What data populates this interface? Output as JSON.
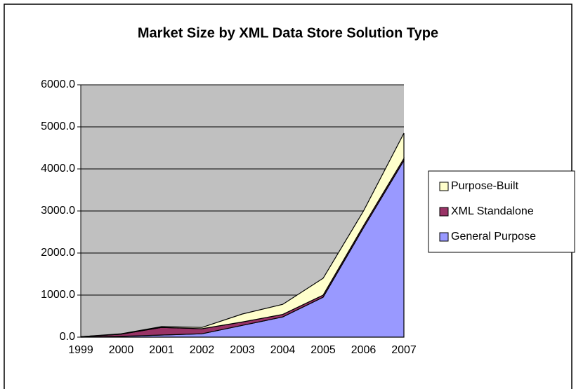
{
  "chart_data": {
    "type": "stacked_area",
    "title": "Market Size by XML Data Store Solution Type",
    "categories": [
      "1999",
      "2000",
      "2001",
      "2002",
      "2003",
      "2004",
      "2005",
      "2006",
      "2007"
    ],
    "series": [
      {
        "name": "General Purpose",
        "color": "#9999ff",
        "values": [
          0,
          20,
          50,
          80,
          280,
          480,
          950,
          2600,
          4200
        ]
      },
      {
        "name": "XML Standalone",
        "color": "#993366",
        "values": [
          10,
          50,
          180,
          120,
          80,
          60,
          50,
          50,
          50
        ]
      },
      {
        "name": "Purpose-Built",
        "color": "#ffffcc",
        "values": [
          0,
          10,
          20,
          30,
          190,
          240,
          400,
          350,
          600
        ]
      }
    ],
    "ylim": [
      0,
      6000
    ],
    "yticks": [
      {
        "value": 0,
        "label": "0.0"
      },
      {
        "value": 1000,
        "label": "1000.0"
      },
      {
        "value": 2000,
        "label": "2000.0"
      },
      {
        "value": 3000,
        "label": "3000.0"
      },
      {
        "value": 4000,
        "label": "4000.0"
      },
      {
        "value": 5000,
        "label": "5000.0"
      },
      {
        "value": 6000,
        "label": "6000.0"
      }
    ],
    "grid": true,
    "legend": "right",
    "plot_background": "#c0c0c0"
  }
}
